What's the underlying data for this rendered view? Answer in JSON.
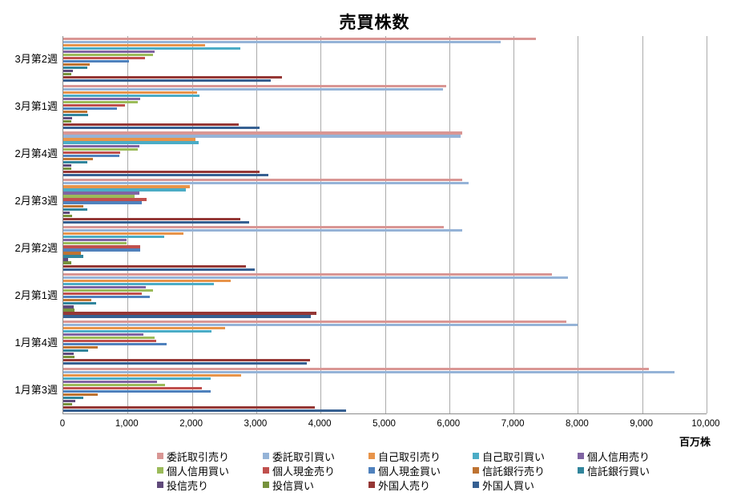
{
  "chart_data": {
    "type": "bar",
    "orientation": "horizontal",
    "title": "売買株数",
    "unit_label": "百万株",
    "xlim": [
      0,
      10000
    ],
    "grid": true,
    "legend_position": "bottom",
    "x_tick_labels": [
      "0",
      "1,000",
      "2,000",
      "3,000",
      "4,000",
      "5,000",
      "6,000",
      "7,000",
      "8,000",
      "9,000",
      "10,000"
    ],
    "categories": [
      "3月第2週",
      "3月第1週",
      "2月第4週",
      "2月第3週",
      "2月第2週",
      "2月第1週",
      "1月第4週",
      "1月第3週"
    ],
    "series": [
      {
        "name": "委託取引売り",
        "color": "#D99694",
        "values": [
          7350,
          5950,
          6200,
          6200,
          5920,
          7600,
          7820,
          9100
        ]
      },
      {
        "name": "委託取引買い",
        "color": "#95B3D7",
        "values": [
          6800,
          5900,
          6180,
          6300,
          6200,
          7850,
          8000,
          9500
        ]
      },
      {
        "name": "自己取引売り",
        "color": "#E8944A",
        "values": [
          2200,
          2080,
          2060,
          1970,
          1870,
          2600,
          2520,
          2760
        ]
      },
      {
        "name": "自己取引買い",
        "color": "#4BACC6",
        "values": [
          2750,
          2120,
          2100,
          1910,
          1570,
          2340,
          2310,
          2290
        ]
      },
      {
        "name": "個人信用売り",
        "color": "#8064A2",
        "values": [
          1420,
          1200,
          1180,
          1180,
          980,
          1280,
          1240,
          1460
        ]
      },
      {
        "name": "個人信用買い",
        "color": "#9BBB59",
        "values": [
          1400,
          1160,
          1160,
          1110,
          980,
          1390,
          1420,
          1580
        ]
      },
      {
        "name": "個人現金売り",
        "color": "#C0504D",
        "values": [
          1270,
          960,
          880,
          1290,
          1190,
          1220,
          1440,
          2150
        ]
      },
      {
        "name": "個人現金買い",
        "color": "#4F81BD",
        "values": [
          1020,
          830,
          870,
          1220,
          1200,
          1340,
          1610,
          2290
        ]
      },
      {
        "name": "信託銀行売り",
        "color": "#BE7332",
        "values": [
          410,
          370,
          460,
          310,
          270,
          430,
          540,
          530
        ]
      },
      {
        "name": "信託銀行買い",
        "color": "#31859C",
        "values": [
          370,
          380,
          370,
          370,
          310,
          510,
          390,
          310
        ]
      },
      {
        "name": "投信売り",
        "color": "#604A7B",
        "values": [
          150,
          140,
          130,
          100,
          80,
          160,
          160,
          190
        ]
      },
      {
        "name": "投信買い",
        "color": "#76923C",
        "values": [
          130,
          130,
          120,
          140,
          120,
          170,
          170,
          140
        ]
      },
      {
        "name": "外国人売り",
        "color": "#953735",
        "values": [
          3400,
          2730,
          3050,
          2750,
          2840,
          3930,
          3840,
          3910
        ]
      },
      {
        "name": "外国人買い",
        "color": "#366092",
        "values": [
          3230,
          3050,
          3190,
          2890,
          2980,
          3850,
          3780,
          4400
        ]
      }
    ]
  }
}
